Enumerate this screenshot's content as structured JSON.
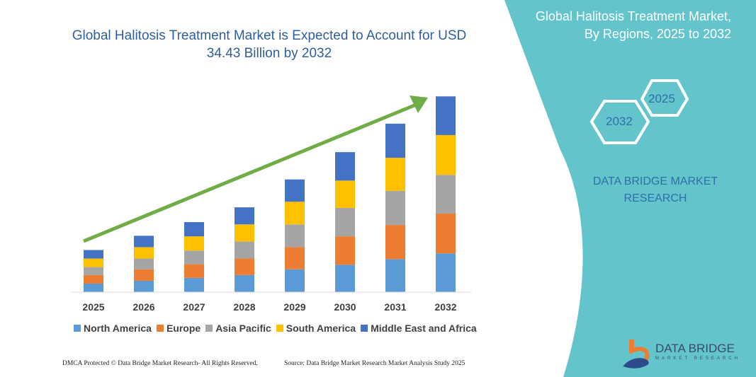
{
  "chart_data": {
    "type": "bar",
    "stacked": true,
    "title": "Global Halitosis Treatment Market is Expected to Account for USD 34.43 Billion by 2032",
    "categories": [
      "2025",
      "2026",
      "2027",
      "2028",
      "2029",
      "2030",
      "2031",
      "2032"
    ],
    "series": [
      {
        "name": "North America",
        "color": "#5B9BD5",
        "values": [
          1.5,
          2.0,
          2.5,
          3.0,
          4.0,
          4.8,
          5.8,
          6.8
        ]
      },
      {
        "name": "Europe",
        "color": "#ED7D31",
        "values": [
          1.5,
          2.0,
          2.4,
          2.9,
          3.9,
          5.0,
          6.0,
          7.0
        ]
      },
      {
        "name": "Asia Pacific",
        "color": "#A5A5A5",
        "values": [
          1.4,
          1.9,
          2.4,
          3.0,
          4.0,
          5.0,
          6.0,
          6.8
        ]
      },
      {
        "name": "South America",
        "color": "#FFC000",
        "values": [
          1.5,
          2.0,
          2.5,
          3.0,
          4.0,
          4.8,
          5.8,
          7.0
        ]
      },
      {
        "name": "Middle East and Africa",
        "color": "#4472C4",
        "values": [
          1.5,
          2.0,
          2.5,
          3.0,
          3.9,
          5.0,
          6.0,
          6.8
        ]
      }
    ],
    "xlabel": "",
    "ylabel": "",
    "legend": "bottom",
    "grid": false,
    "trend_arrow_color": "#70AD47"
  },
  "side_panel": {
    "title_line1": "Global Halitosis Treatment Market,",
    "title_line2": "By Regions, 2025 to 2032",
    "hex_start": "2025",
    "hex_end": "2032",
    "brand_line1": "DATA BRIDGE MARKET",
    "brand_line2": "RESEARCH",
    "color": "#63C5CB"
  },
  "logo": {
    "name": "DATA BRIDGE",
    "sub": "MARKET RESEARCH"
  },
  "footer": {
    "left": "DMCA Protected © Data Bridge Market Research-  All Rights Reserved.",
    "right": "Source: Data Bridge Market Research  Market Analysis Study 2025"
  }
}
